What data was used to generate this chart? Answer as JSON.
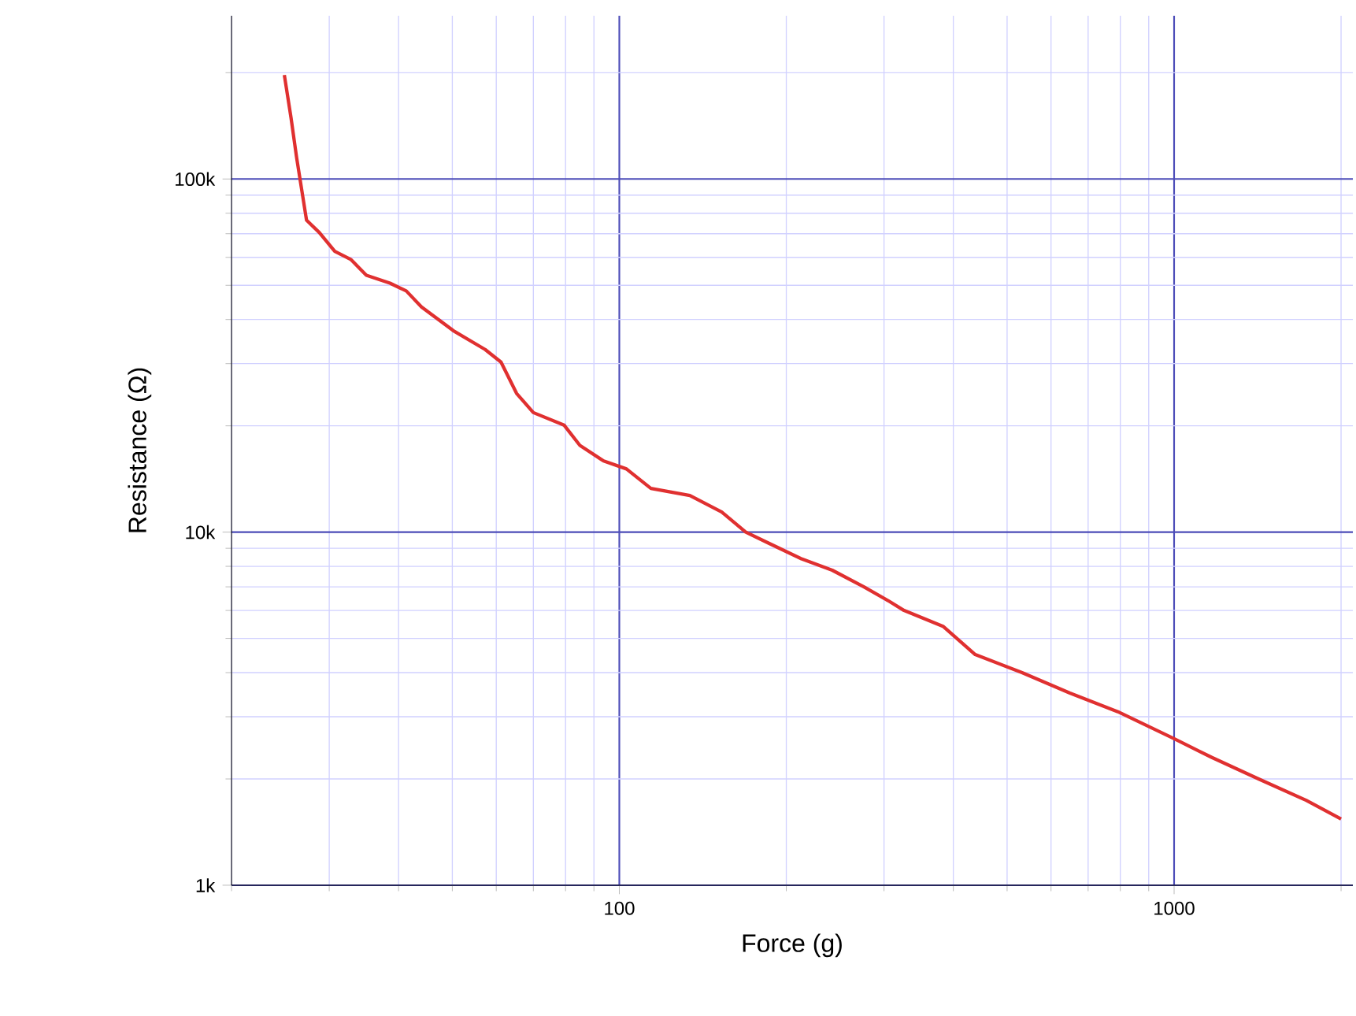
{
  "chart_data": {
    "type": "line",
    "xlabel": "Force (g)",
    "ylabel": "Resistance (Ω)",
    "log": "xy",
    "grid": true,
    "xlim": [
      20,
      2100
    ],
    "ylim": [
      1000,
      290000
    ],
    "xticks": [
      {
        "value": 20,
        "label": null
      },
      {
        "value": 30,
        "label": null
      },
      {
        "value": 40,
        "label": null
      },
      {
        "value": 50,
        "label": null
      },
      {
        "value": 60,
        "label": null
      },
      {
        "value": 70,
        "label": null
      },
      {
        "value": 80,
        "label": null
      },
      {
        "value": 90,
        "label": null
      },
      100,
      {
        "value": 200,
        "label": null
      },
      {
        "value": 300,
        "label": null
      },
      {
        "value": 400,
        "label": null
      },
      {
        "value": 500,
        "label": null
      },
      {
        "value": 600,
        "label": null
      },
      {
        "value": 700,
        "label": null
      },
      {
        "value": 800,
        "label": null
      },
      {
        "value": 900,
        "label": null
      },
      1000,
      {
        "value": 2000,
        "label": null
      }
    ],
    "yticks": [
      {
        "value": 1000,
        "label": "1k"
      },
      {
        "value": 2000,
        "label": null
      },
      {
        "value": 3000,
        "label": null
      },
      {
        "value": 4000,
        "label": null
      },
      {
        "value": 5000,
        "label": null
      },
      {
        "value": 6000,
        "label": null
      },
      {
        "value": 7000,
        "label": null
      },
      {
        "value": 8000,
        "label": null
      },
      {
        "value": 9000,
        "label": null
      },
      {
        "value": 10000,
        "label": "10k"
      },
      {
        "value": 20000,
        "label": null
      },
      {
        "value": 30000,
        "label": null
      },
      {
        "value": 40000,
        "label": null
      },
      {
        "value": 50000,
        "label": null
      },
      {
        "value": 60000,
        "label": null
      },
      {
        "value": 70000,
        "label": null
      },
      {
        "value": 80000,
        "label": null
      },
      {
        "value": 90000,
        "label": null
      },
      {
        "value": 100000,
        "label": "100k"
      },
      {
        "value": 200000,
        "label": null
      }
    ],
    "series": [
      {
        "color": "#e03030",
        "x": [
          24.9,
          25.6,
          26.2,
          27.3,
          28.8,
          30.7,
          32.8,
          35.0,
          38.6,
          41.3,
          44.0,
          50.2,
          57.3,
          61.2,
          65.3,
          70.0,
          79.5,
          84.9,
          93.7,
          103,
          114,
          134,
          153,
          169,
          186,
          213,
          242,
          276,
          305,
          326,
          384,
          438,
          532,
          649,
          792,
          1000,
          1170,
          1420,
          1730,
          2000
        ],
        "values": [
          197000,
          149000,
          115000,
          76500,
          70500,
          62400,
          59200,
          53400,
          50700,
          48200,
          43400,
          37200,
          32900,
          30300,
          24700,
          21800,
          20100,
          17600,
          15900,
          15100,
          13300,
          12700,
          11400,
          10000,
          9300,
          8400,
          7800,
          7000,
          6400,
          6000,
          5400,
          4500,
          4000,
          3500,
          3100,
          2600,
          2300,
          2000,
          1740,
          1540
        ]
      }
    ]
  }
}
